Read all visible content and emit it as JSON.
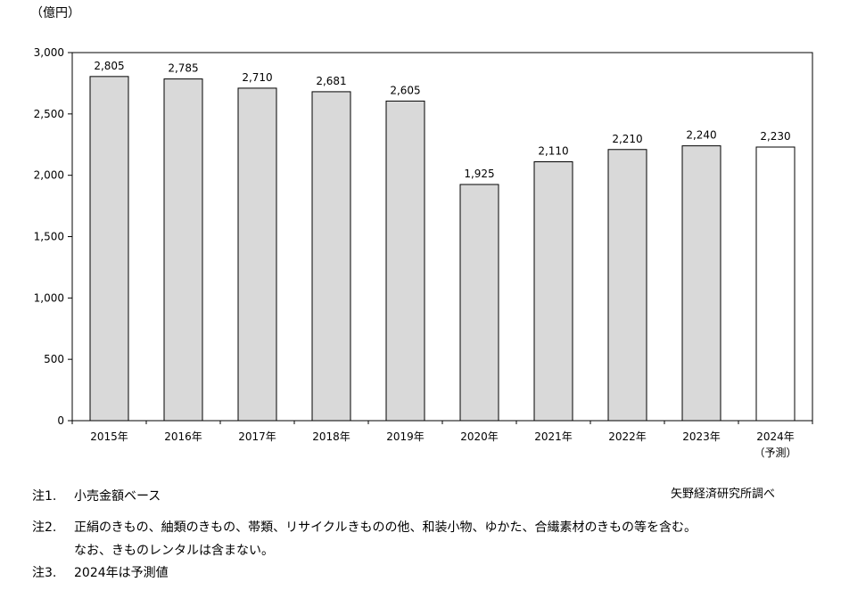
{
  "chart_data": {
    "type": "bar",
    "title": "",
    "unit_label": "（億円）",
    "categories": [
      "2015年",
      "2016年",
      "2017年",
      "2018年",
      "2019年",
      "2020年",
      "2021年",
      "2022年",
      "2023年",
      "2024年"
    ],
    "category_sublabels": [
      "",
      "",
      "",
      "",
      "",
      "",
      "",
      "",
      "",
      "（予測）"
    ],
    "values": [
      2805,
      2785,
      2710,
      2681,
      2605,
      1925,
      2110,
      2210,
      2240,
      2230
    ],
    "value_labels": [
      "2,805",
      "2,785",
      "2,710",
      "2,681",
      "2,605",
      "1,925",
      "2,110",
      "2,210",
      "2,240",
      "2,230"
    ],
    "forecast_index": 9,
    "ylim": [
      0,
      3000
    ],
    "yticks": [
      0,
      500,
      1000,
      1500,
      2000,
      2500,
      3000
    ],
    "ytick_labels": [
      "0",
      "500",
      "1,000",
      "1,500",
      "2,000",
      "2,500",
      "3,000"
    ],
    "bar_color": "#d9d9d9",
    "forecast_bar_color": "#ffffff",
    "grid": false
  },
  "source": "矢野経済研究所調べ",
  "notes": [
    {
      "tag": "注1.",
      "text": "小売金額ベース"
    },
    {
      "tag": "注2.",
      "text": "正絹のきもの、紬類のきもの、帯類、リサイクルきものの他、和装小物、ゆかた、合繊素材のきもの等を含む。"
    },
    {
      "tag": "",
      "text": "なお、きものレンタルは含まない。"
    },
    {
      "tag": "注3.",
      "text": "2024年は予測値"
    }
  ]
}
